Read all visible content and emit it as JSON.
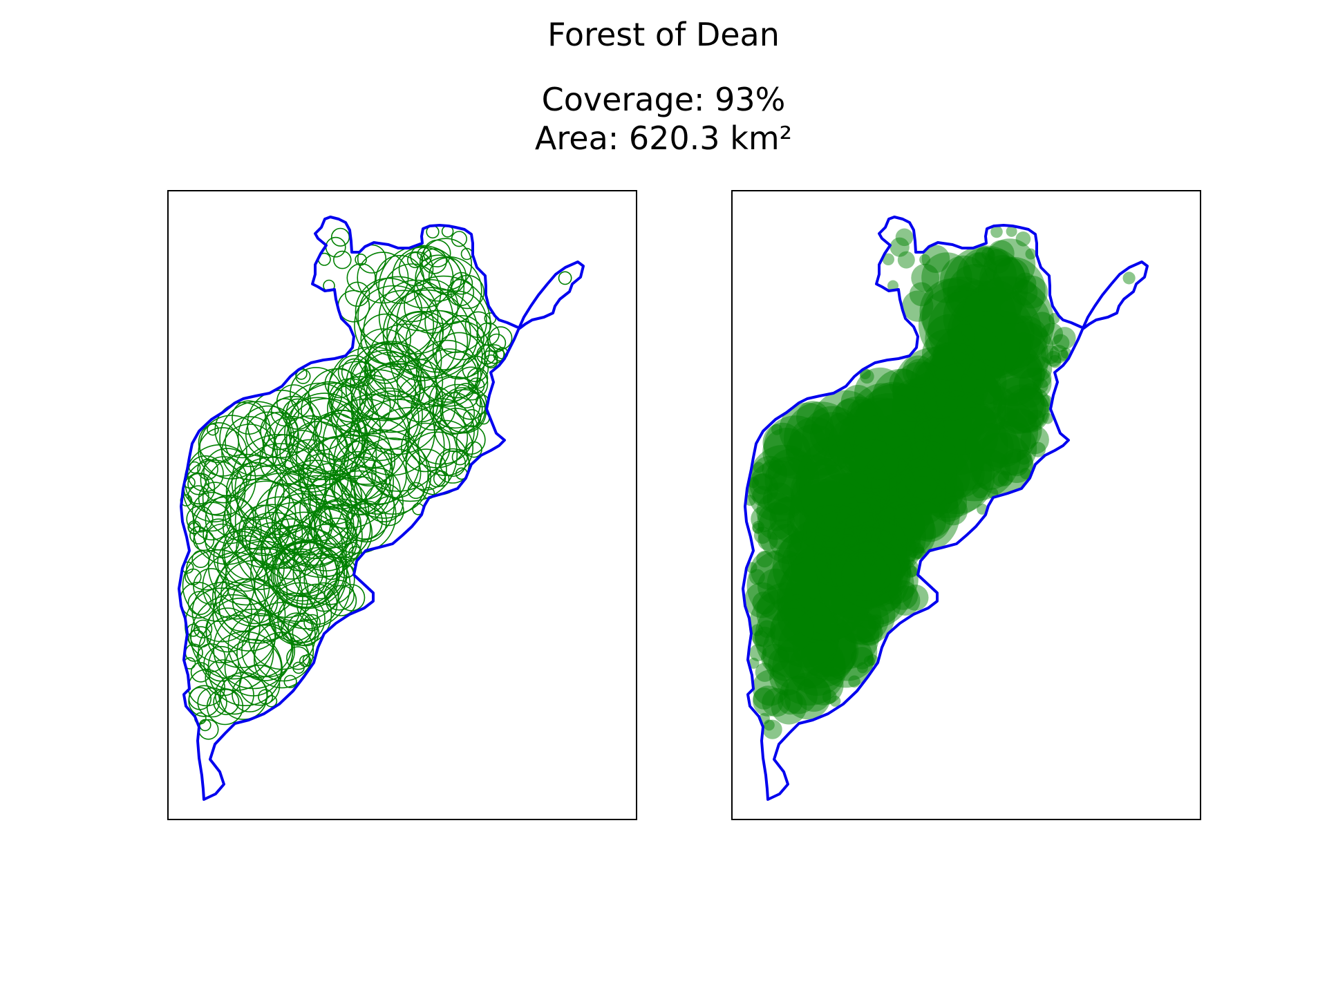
{
  "figure": {
    "title": "Forest of Dean",
    "coverage_line": "Coverage: 93%",
    "area_line": "Area: 620.3 km²"
  },
  "panels": [
    {
      "name": "circle-outline-panel",
      "circle_style": "outline"
    },
    {
      "name": "circle-filled-panel",
      "circle_style": "filled"
    }
  ],
  "colors": {
    "boundary": "#0000ee",
    "circles": "#008000",
    "frame": "#000000",
    "background": "#ffffff"
  }
}
